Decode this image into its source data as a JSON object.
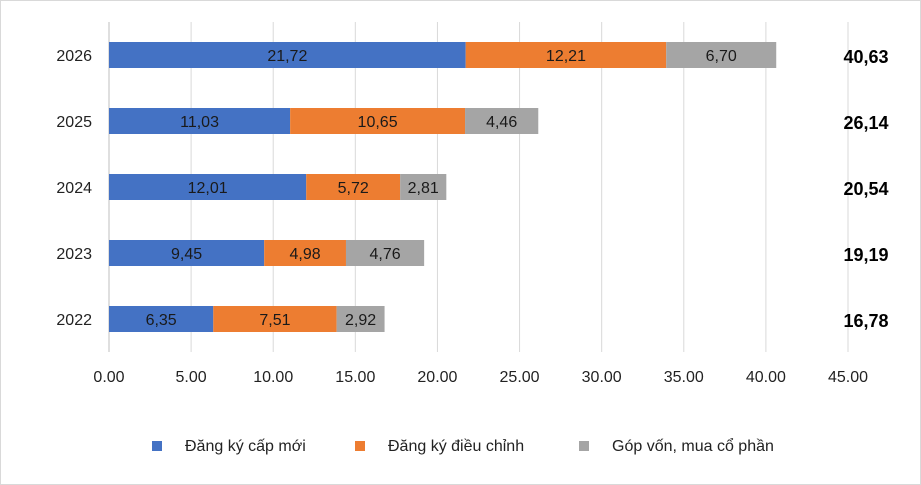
{
  "chart_data": {
    "type": "bar",
    "orientation": "horizontal",
    "stacked": true,
    "title": "",
    "xlabel": "",
    "ylabel": "",
    "categories": [
      "2026",
      "2025",
      "2024",
      "2023",
      "2022"
    ],
    "series": [
      {
        "name": "Đăng ký cấp mới",
        "color": "#4472c4",
        "values": [
          21.72,
          11.03,
          12.01,
          9.45,
          6.35
        ],
        "labels": [
          "21,72",
          "11,03",
          "12,01",
          "9,45",
          "6,35"
        ]
      },
      {
        "name": "Đăng ký điều chỉnh",
        "color": "#ed7d31",
        "values": [
          12.21,
          10.65,
          5.72,
          4.98,
          7.51
        ],
        "labels": [
          "12,21",
          "10,65",
          "5,72",
          "4,98",
          "7,51"
        ]
      },
      {
        "name": "Góp vốn, mua cổ phần",
        "color": "#a5a5a5",
        "values": [
          6.7,
          4.46,
          2.81,
          4.76,
          2.92
        ],
        "labels": [
          "6,70",
          "4,46",
          "2,81",
          "4,76",
          "2,92"
        ]
      }
    ],
    "totals": [
      "40,63",
      "26,14",
      "20,54",
      "19,19",
      "16,78"
    ],
    "xlim": [
      0,
      45
    ],
    "xticks": [
      "0.00",
      "5.00",
      "10.00",
      "15.00",
      "20.00",
      "25.00",
      "30.00",
      "35.00",
      "40.00",
      "45.00"
    ],
    "grid": "vertical",
    "legend_position": "bottom"
  }
}
